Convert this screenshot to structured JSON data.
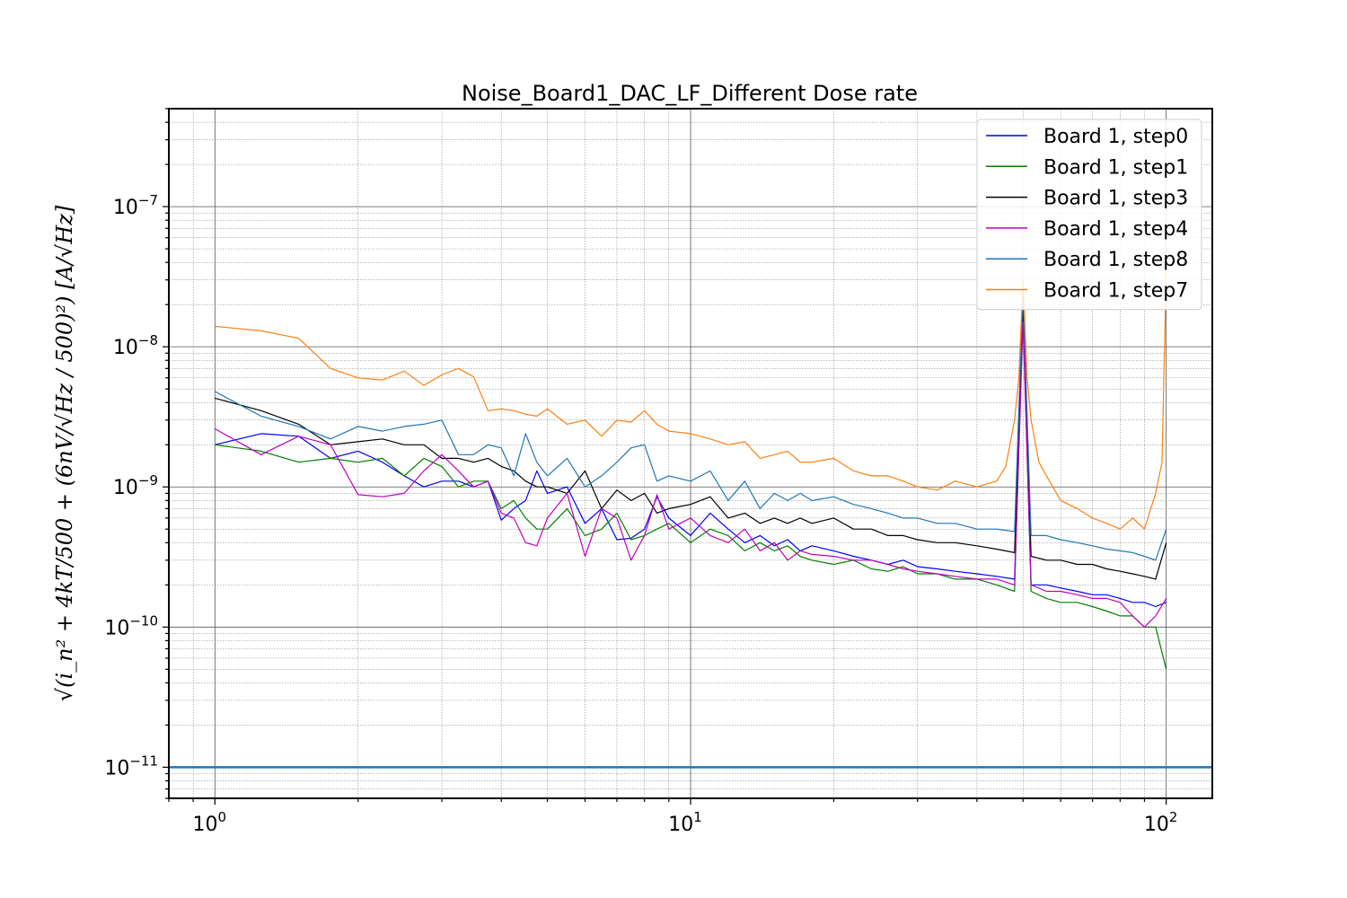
{
  "chart_data": {
    "type": "line",
    "title": "Noise_Board1_DAC_LF_Different Dose rate",
    "xlabel": "",
    "ylabel": "√(i_n² + 4kT/500 + (6nV/√Hz / 500)²) [A/√Hz]",
    "x_scale": "log",
    "y_scale": "log",
    "xlim": [
      0.8,
      125
    ],
    "ylim": [
      6e-12,
      5e-07
    ],
    "x_tick_labels": [
      {
        "value": 1,
        "mantissa": "10",
        "exp": "0"
      },
      {
        "value": 10,
        "mantissa": "10",
        "exp": "1"
      },
      {
        "value": 100,
        "mantissa": "10",
        "exp": "2"
      }
    ],
    "y_tick_labels": [
      {
        "value": 1e-11,
        "mantissa": "10",
        "exp": "−11"
      },
      {
        "value": 1e-10,
        "mantissa": "10",
        "exp": "−10"
      },
      {
        "value": 1e-09,
        "mantissa": "10",
        "exp": "−9"
      },
      {
        "value": 1e-08,
        "mantissa": "10",
        "exp": "−8"
      },
      {
        "value": 1e-07,
        "mantissa": "10",
        "exp": "−7"
      }
    ],
    "grid": "major and minor",
    "legend_position": "top-right",
    "reference_line": {
      "y": 1e-11,
      "color": "#1f77b4"
    },
    "series": [
      {
        "name": "Board 1, step0",
        "color": "#0000ff",
        "x": [
          1.0,
          1.25,
          1.5,
          1.75,
          2.0,
          2.25,
          2.5,
          2.75,
          3.0,
          3.25,
          3.5,
          3.75,
          4.0,
          4.25,
          4.5,
          4.75,
          5.0,
          5.5,
          6.0,
          6.5,
          7.0,
          7.5,
          8.0,
          8.5,
          9.0,
          10,
          11,
          12,
          13,
          14,
          15,
          16,
          17,
          18,
          20,
          22,
          24,
          26,
          28,
          30,
          33,
          36,
          40,
          44,
          48,
          50,
          52,
          56,
          60,
          65,
          70,
          75,
          80,
          85,
          90,
          95,
          100
        ],
        "y": [
          2e-09,
          2.4e-09,
          2.3e-09,
          1.6e-09,
          1.8e-09,
          1.5e-09,
          1.2e-09,
          1e-09,
          1.1e-09,
          1.1e-09,
          1e-09,
          1.1e-09,
          5.8e-10,
          7e-10,
          8e-10,
          1.3e-09,
          9e-10,
          1e-09,
          5.5e-10,
          7e-10,
          4.2e-10,
          4.3e-10,
          5e-10,
          8.5e-10,
          6e-10,
          4.5e-10,
          6.5e-10,
          5e-10,
          4e-10,
          4.5e-10,
          3.8e-10,
          4.2e-10,
          3.5e-10,
          3.8e-10,
          3.5e-10,
          3.2e-10,
          3e-10,
          2.8e-10,
          3e-10,
          2.7e-10,
          2.6e-10,
          2.5e-10,
          2.4e-10,
          2.3e-10,
          2.2e-10,
          1.8e-08,
          2e-10,
          2e-10,
          1.9e-10,
          1.8e-10,
          1.7e-10,
          1.7e-10,
          1.6e-10,
          1.5e-10,
          1.5e-10,
          1.4e-10,
          1.5e-10
        ]
      },
      {
        "name": "Board 1, step1",
        "color": "#008000",
        "x": [
          1.0,
          1.25,
          1.5,
          1.75,
          2.0,
          2.25,
          2.5,
          2.75,
          3.0,
          3.25,
          3.5,
          3.75,
          4.0,
          4.25,
          4.5,
          4.75,
          5.0,
          5.5,
          6.0,
          6.5,
          7.0,
          7.5,
          8.0,
          8.5,
          9.0,
          10,
          11,
          12,
          13,
          14,
          15,
          16,
          17,
          18,
          20,
          22,
          24,
          26,
          28,
          30,
          33,
          36,
          40,
          44,
          48,
          50,
          52,
          56,
          60,
          65,
          70,
          75,
          80,
          85,
          90,
          95,
          100
        ],
        "y": [
          2e-09,
          1.8e-09,
          1.5e-09,
          1.6e-09,
          1.5e-09,
          1.6e-09,
          1.2e-09,
          1.6e-09,
          1.4e-09,
          1e-09,
          1.1e-09,
          1.1e-09,
          7e-10,
          8e-10,
          6e-10,
          5e-10,
          5e-10,
          7e-10,
          4.5e-10,
          5e-10,
          6.5e-10,
          4.2e-10,
          4.5e-10,
          5e-10,
          5.5e-10,
          4e-10,
          5e-10,
          4.5e-10,
          3.5e-10,
          4e-10,
          3.5e-10,
          3.8e-10,
          3.2e-10,
          3e-10,
          2.8e-10,
          3e-10,
          2.6e-10,
          2.5e-10,
          2.7e-10,
          2.4e-10,
          2.4e-10,
          2.2e-10,
          2.2e-10,
          2e-10,
          1.8e-10,
          2e-08,
          1.8e-10,
          1.6e-10,
          1.5e-10,
          1.5e-10,
          1.4e-10,
          1.3e-10,
          1.2e-10,
          1.2e-10,
          1e-10,
          1e-10,
          5e-11
        ]
      },
      {
        "name": "Board 1, step3",
        "color": "#000000",
        "x": [
          1.0,
          1.25,
          1.5,
          1.75,
          2.0,
          2.25,
          2.5,
          2.75,
          3.0,
          3.25,
          3.5,
          3.75,
          4.0,
          4.25,
          4.5,
          4.75,
          5.0,
          5.5,
          6.0,
          6.5,
          7.0,
          7.5,
          8.0,
          8.5,
          9.0,
          10,
          11,
          12,
          13,
          14,
          15,
          16,
          17,
          18,
          20,
          22,
          24,
          26,
          28,
          30,
          33,
          36,
          40,
          44,
          48,
          50,
          52,
          56,
          60,
          65,
          70,
          75,
          80,
          85,
          90,
          95,
          100
        ],
        "y": [
          4.3e-09,
          3.5e-09,
          2.8e-09,
          2e-09,
          2.1e-09,
          2.2e-09,
          2e-09,
          2e-09,
          1.6e-09,
          1.6e-09,
          1.5e-09,
          1.6e-09,
          1.4e-09,
          1.3e-09,
          1.1e-09,
          1e-09,
          1e-09,
          9e-10,
          1.3e-09,
          7e-10,
          9.5e-10,
          8e-10,
          9e-10,
          6.5e-10,
          7e-10,
          7.5e-10,
          8.5e-10,
          6e-10,
          6.5e-10,
          5.5e-10,
          6e-10,
          5.5e-10,
          6e-10,
          5.5e-10,
          6e-10,
          5e-10,
          5e-10,
          4.5e-10,
          4.5e-10,
          4.2e-10,
          4e-10,
          4e-10,
          3.8e-10,
          3.6e-10,
          3.4e-10,
          2e-08,
          3.2e-10,
          3e-10,
          3e-10,
          2.8e-10,
          2.8e-10,
          2.6e-10,
          2.5e-10,
          2.4e-10,
          2.3e-10,
          2.2e-10,
          4e-10
        ]
      },
      {
        "name": "Board 1, step4",
        "color": "#bf00bf",
        "x": [
          1.0,
          1.25,
          1.5,
          1.75,
          2.0,
          2.25,
          2.5,
          2.75,
          3.0,
          3.25,
          3.5,
          3.75,
          4.0,
          4.25,
          4.5,
          4.75,
          5.0,
          5.5,
          6.0,
          6.5,
          7.0,
          7.5,
          8.0,
          8.5,
          9.0,
          10,
          11,
          12,
          13,
          14,
          15,
          16,
          17,
          18,
          20,
          22,
          24,
          26,
          28,
          30,
          33,
          36,
          40,
          44,
          48,
          50,
          52,
          56,
          60,
          65,
          70,
          75,
          80,
          85,
          90,
          95,
          100
        ],
        "y": [
          2.6e-09,
          1.7e-09,
          2.3e-09,
          2e-09,
          8.8e-10,
          8.5e-10,
          9e-10,
          1.3e-09,
          1.7e-09,
          1.3e-09,
          1e-09,
          1.1e-09,
          6.5e-10,
          6e-10,
          4e-10,
          3.8e-10,
          6e-10,
          9e-10,
          3.2e-10,
          7e-10,
          6e-10,
          3e-10,
          4.5e-10,
          8.8e-10,
          5e-10,
          6e-10,
          4.5e-10,
          4e-10,
          5e-10,
          3.5e-10,
          4e-10,
          3e-10,
          3.5e-10,
          3.3e-10,
          3.2e-10,
          3e-10,
          3e-10,
          2.8e-10,
          2.6e-10,
          2.5e-10,
          2.4e-10,
          2.3e-10,
          2.2e-10,
          2.2e-10,
          2e-10,
          1.5e-08,
          2e-10,
          1.8e-10,
          1.8e-10,
          1.7e-10,
          1.6e-10,
          1.6e-10,
          1.5e-10,
          1.2e-10,
          1e-10,
          1.2e-10,
          1.6e-10
        ]
      },
      {
        "name": "Board 1, step8",
        "color": "#1f77b4",
        "x": [
          1.0,
          1.25,
          1.5,
          1.75,
          2.0,
          2.25,
          2.5,
          2.75,
          3.0,
          3.25,
          3.5,
          3.75,
          4.0,
          4.25,
          4.5,
          4.75,
          5.0,
          5.5,
          6.0,
          6.5,
          7.0,
          7.5,
          8.0,
          8.5,
          9.0,
          10,
          11,
          12,
          13,
          14,
          15,
          16,
          17,
          18,
          20,
          22,
          24,
          26,
          28,
          30,
          33,
          36,
          40,
          44,
          48,
          50,
          52,
          56,
          60,
          65,
          70,
          75,
          80,
          85,
          90,
          95,
          100
        ],
        "y": [
          4.8e-09,
          3.2e-09,
          2.7e-09,
          2.2e-09,
          2.7e-09,
          2.5e-09,
          2.7e-09,
          2.8e-09,
          3e-09,
          1.7e-09,
          1.7e-09,
          2e-09,
          1.9e-09,
          1.2e-09,
          2.4e-09,
          1.5e-09,
          1.2e-09,
          1.6e-09,
          1e-09,
          1.2e-09,
          1.5e-09,
          1.9e-09,
          2e-09,
          1.1e-09,
          1.2e-09,
          1.1e-09,
          1.3e-09,
          8e-10,
          1.1e-09,
          7e-10,
          9e-10,
          8e-10,
          9e-10,
          8e-10,
          8.5e-10,
          7.5e-10,
          7e-10,
          6.5e-10,
          6e-10,
          6e-10,
          5.5e-10,
          5.5e-10,
          5e-10,
          5e-10,
          4.8e-10,
          2.5e-08,
          4.5e-10,
          4.5e-10,
          4.2e-10,
          4e-10,
          3.8e-10,
          3.6e-10,
          3.5e-10,
          3.4e-10,
          3.2e-10,
          3e-10,
          5e-10
        ]
      },
      {
        "name": "Board 1, step7",
        "color": "#ff7f0e",
        "x": [
          1.0,
          1.25,
          1.5,
          1.75,
          2.0,
          2.25,
          2.5,
          2.75,
          3.0,
          3.25,
          3.5,
          3.75,
          4.0,
          4.25,
          4.5,
          4.75,
          5.0,
          5.5,
          6.0,
          6.5,
          7.0,
          7.5,
          8.0,
          8.5,
          9.0,
          10,
          11,
          12,
          13,
          14,
          15,
          16,
          17,
          18,
          20,
          22,
          24,
          26,
          28,
          30,
          33,
          36,
          40,
          44,
          46,
          48,
          49,
          50,
          51,
          52,
          54,
          56,
          60,
          65,
          70,
          75,
          80,
          85,
          90,
          95,
          98,
          100
        ],
        "y": [
          1.4e-08,
          1.3e-08,
          1.15e-08,
          7e-09,
          6e-09,
          5.8e-09,
          6.7e-09,
          5.3e-09,
          6.3e-09,
          7e-09,
          6.1e-09,
          3.5e-09,
          3.6e-09,
          3.5e-09,
          3.3e-09,
          3.2e-09,
          3.6e-09,
          2.8e-09,
          3e-09,
          2.3e-09,
          3e-09,
          2.9e-09,
          3.5e-09,
          2.8e-09,
          2.5e-09,
          2.4e-09,
          2.2e-09,
          2e-09,
          2.1e-09,
          1.6e-09,
          1.7e-09,
          1.8e-09,
          1.5e-09,
          1.5e-09,
          1.6e-09,
          1.3e-09,
          1.2e-09,
          1.2e-09,
          1.1e-09,
          1e-09,
          9.5e-10,
          1.1e-09,
          1e-09,
          1.1e-09,
          1.4e-09,
          3e-09,
          6e-09,
          3e-08,
          6e-09,
          3e-09,
          1.5e-09,
          1.2e-09,
          8e-10,
          7e-10,
          6e-10,
          5.5e-10,
          5e-10,
          6e-10,
          5e-10,
          9e-10,
          1.5e-09,
          3.5e-08
        ]
      }
    ]
  }
}
